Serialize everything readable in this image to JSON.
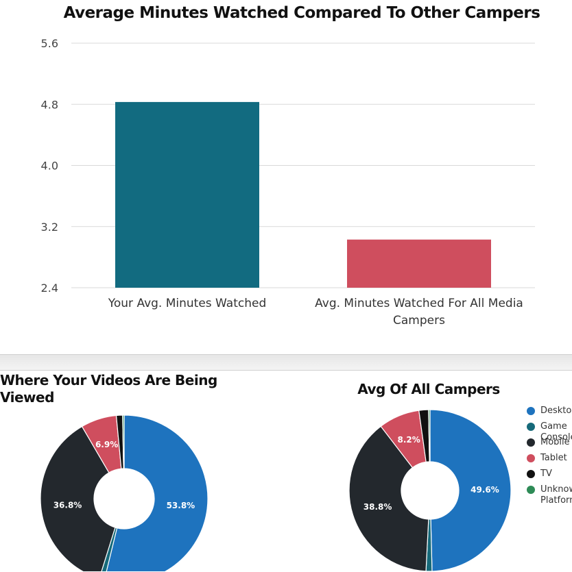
{
  "bar_chart_title": "Average Minutes Watched Compared To Other Campers",
  "pie1_title": "Where Your Videos Are Being Viewed",
  "pie2_title": "Avg Of All Campers",
  "colors": {
    "bar_yours": "#126b80",
    "bar_all": "#cf4e5e",
    "desktop": "#1e73be",
    "game_console": "#166a7a",
    "mobile": "#23282d",
    "tablet": "#cf4e5e",
    "tv": "#111111",
    "unknown": "#2e8b57",
    "grid": "#d9d9d9"
  },
  "legend": [
    {
      "label": "Desktop",
      "color_key": "desktop"
    },
    {
      "label": "Game Console",
      "color_key": "game_console"
    },
    {
      "label": "Mobile",
      "color_key": "mobile"
    },
    {
      "label": "Tablet",
      "color_key": "tablet"
    },
    {
      "label": "TV",
      "color_key": "tv"
    },
    {
      "label": "Unknown Platform",
      "color_key": "unknown"
    }
  ],
  "chart_data": [
    {
      "type": "bar",
      "title": "Average Minutes Watched Compared To Other Campers",
      "categories": [
        "Your Avg. Minutes Watched",
        "Avg. Minutes Watched For All Media Campers"
      ],
      "values": [
        4.83,
        3.03
      ],
      "bar_color_keys": [
        "bar_yours",
        "bar_all"
      ],
      "ylim": [
        2.4,
        5.6
      ],
      "yticks": [
        "5.6",
        "4.8",
        "4.0",
        "3.2",
        "2.4"
      ],
      "xlabel": "",
      "ylabel": "",
      "grid": true
    },
    {
      "type": "pie",
      "title": "Where Your Videos Are Being Viewed",
      "donut": true,
      "slices": [
        {
          "label": "Desktop",
          "value": 53.8,
          "text": "53.8%",
          "color_key": "desktop"
        },
        {
          "label": "Game Console",
          "value": 1.0,
          "text": "",
          "color_key": "game_console"
        },
        {
          "label": "Mobile",
          "value": 36.8,
          "text": "36.8%",
          "color_key": "mobile"
        },
        {
          "label": "Tablet",
          "value": 6.9,
          "text": "6.9%",
          "color_key": "tablet"
        },
        {
          "label": "TV",
          "value": 1.2,
          "text": "",
          "color_key": "tv"
        },
        {
          "label": "Unknown Platform",
          "value": 0.3,
          "text": "",
          "color_key": "unknown"
        }
      ]
    },
    {
      "type": "pie",
      "title": "Avg Of All Campers",
      "donut": true,
      "slices": [
        {
          "label": "Desktop",
          "value": 49.6,
          "text": "49.6%",
          "color_key": "desktop"
        },
        {
          "label": "Game Console",
          "value": 1.2,
          "text": "",
          "color_key": "game_console"
        },
        {
          "label": "Mobile",
          "value": 38.8,
          "text": "38.8%",
          "color_key": "mobile"
        },
        {
          "label": "Tablet",
          "value": 8.2,
          "text": "8.2%",
          "color_key": "tablet"
        },
        {
          "label": "TV",
          "value": 1.9,
          "text": "",
          "color_key": "tv"
        },
        {
          "label": "Unknown Platform",
          "value": 0.3,
          "text": "",
          "color_key": "unknown"
        }
      ]
    }
  ]
}
